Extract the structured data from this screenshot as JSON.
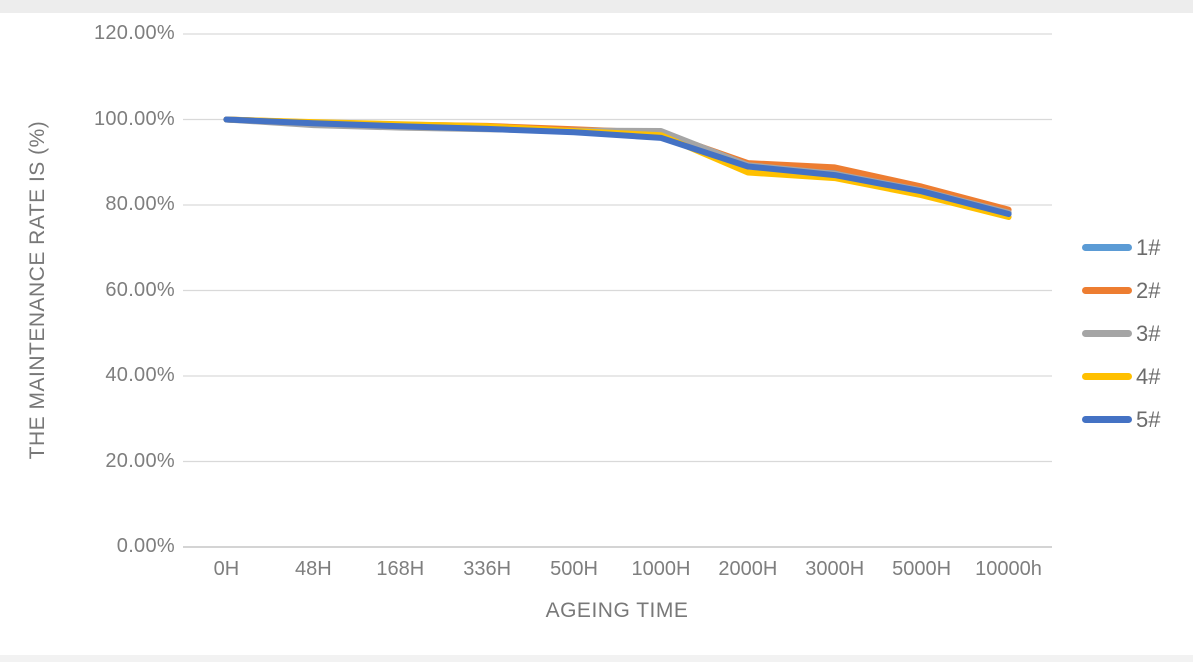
{
  "chart_data": {
    "type": "line",
    "title": "",
    "xlabel": "AGEING TIME",
    "ylabel": "THE MAINTENANCE RATE IS (%)",
    "categories": [
      "0H",
      "48H",
      "168H",
      "336H",
      "500H",
      "1000H",
      "2000H",
      "3000H",
      "5000H",
      "10000h"
    ],
    "series": [
      {
        "name": "1#",
        "color": "#5B9BD5",
        "values": [
          100.0,
          99.2,
          98.6,
          98.1,
          97.4,
          96.6,
          89.5,
          87.6,
          83.6,
          78.2
        ]
      },
      {
        "name": "2#",
        "color": "#ED7D31",
        "values": [
          100.0,
          99.3,
          98.8,
          98.5,
          97.7,
          96.9,
          89.8,
          88.8,
          84.3,
          78.9
        ]
      },
      {
        "name": "3#",
        "color": "#A5A5A5",
        "values": [
          100.0,
          98.7,
          98.1,
          97.7,
          97.4,
          97.3,
          89.3,
          87.3,
          83.4,
          78.2
        ]
      },
      {
        "name": "4#",
        "color": "#FFC000",
        "values": [
          100.0,
          99.4,
          98.9,
          98.4,
          97.3,
          96.3,
          87.6,
          86.3,
          82.3,
          77.2
        ]
      },
      {
        "name": "5#",
        "color": "#4472C4",
        "values": [
          100.0,
          99.1,
          98.4,
          97.8,
          97.0,
          95.7,
          89.0,
          87.0,
          83.2,
          77.9
        ]
      }
    ],
    "y_ticks": [
      {
        "value": 0,
        "label": "0.00%"
      },
      {
        "value": 20,
        "label": "20.00%"
      },
      {
        "value": 40,
        "label": "40.00%"
      },
      {
        "value": 60,
        "label": "60.00%"
      },
      {
        "value": 80,
        "label": "80.00%"
      },
      {
        "value": 100,
        "label": "100.00%"
      },
      {
        "value": 120,
        "label": "120.00%"
      }
    ],
    "ylim": [
      0,
      120
    ],
    "grid": true,
    "legend_position": "right",
    "colors": {
      "gridline": "#d9d9d9",
      "axis_line": "#c6c6c6",
      "tick_text": "#7e7e7e"
    }
  }
}
